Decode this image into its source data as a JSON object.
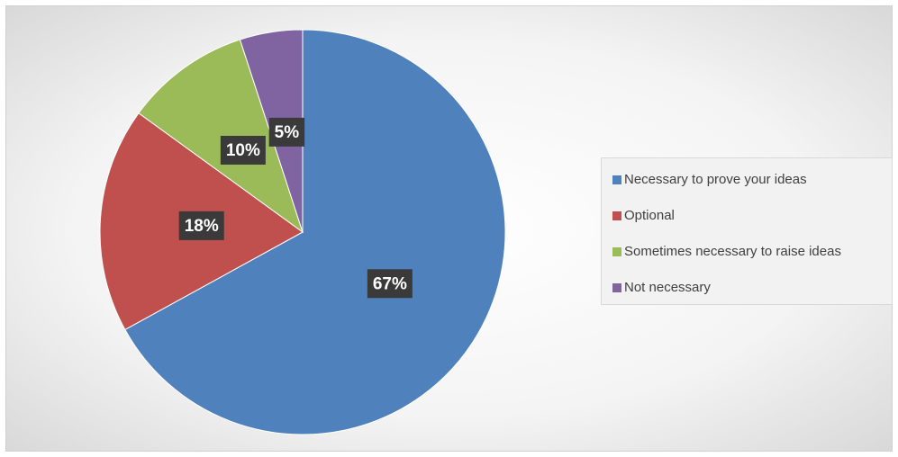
{
  "chart_data": {
    "type": "pie",
    "categories": [
      "Necessary to prove your ideas",
      "Optional",
      "Sometimes necessary to raise ideas",
      "Not necessary"
    ],
    "values": [
      67,
      18,
      10,
      5
    ],
    "value_labels": [
      "67%",
      "18%",
      "10%",
      "5%"
    ],
    "colors": [
      "#4f81bd",
      "#c0504d",
      "#9bbb59",
      "#8064a2"
    ],
    "legend": "right"
  }
}
